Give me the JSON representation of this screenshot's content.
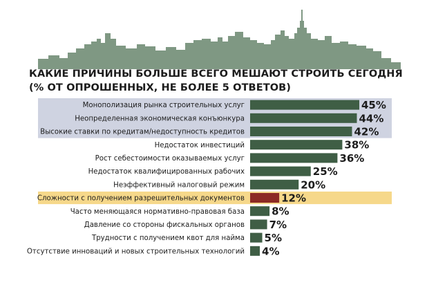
{
  "title_line1": "КАКИЕ ПРИЧИНЫ БОЛЬШЕ ВСЕГО МЕШАЮТ СТРОИТЬ СЕГОДНЯ",
  "title_line2": "(% ОТ ОПРОШЕННЫХ, НЕ БОЛЕЕ 5 ОТВЕТОВ)",
  "colors": {
    "bar": "#3f5e45",
    "bar_highlight": "#8c2a24",
    "band_top": "#cfd3e1",
    "band_highlight": "#f6d88a",
    "skyline": "#7f9883",
    "text": "#1c1c1c"
  },
  "chart_data": {
    "type": "bar",
    "orientation": "horizontal",
    "title": "КАКИЕ ПРИЧИНЫ БОЛЬШЕ ВСЕГО МЕШАЮТ СТРОИТЬ СЕГОДНЯ (% ОТ ОПРОШЕННЫХ, НЕ БОЛЕЕ 5 ОТВЕТОВ)",
    "unit": "%",
    "xlim": [
      0,
      45
    ],
    "grid": false,
    "legend": "none",
    "categories": [
      "Монополизация рынка строительных услуг",
      "Неопределенная экономическая конъюнкура",
      "Высокие ставки по кредитам/недоступность кредитов",
      "Недостаток инвестиций",
      "Рост себестоимости оказываемых услуг",
      "Недостаток квалифицированных рабочих",
      "Неэффективный налоговый режим",
      "Сложности с получением разрешительных документов",
      "Часто меняющаяся нормативно-правовая база",
      "Давление со стороны фискальных органов",
      "Трудности с получением квот для найма",
      "Отсутствие инноваций и новых строительных технологий"
    ],
    "values": [
      45,
      44,
      42,
      38,
      36,
      25,
      20,
      12,
      8,
      7,
      5,
      4
    ],
    "value_labels": [
      "45%",
      "44%",
      "42%",
      "38%",
      "36%",
      "25%",
      "20%",
      "12%",
      "8%",
      "7%",
      "5%",
      "4%"
    ],
    "highlight_band_rows": [
      0,
      1,
      2
    ],
    "highlight_row": 7
  }
}
